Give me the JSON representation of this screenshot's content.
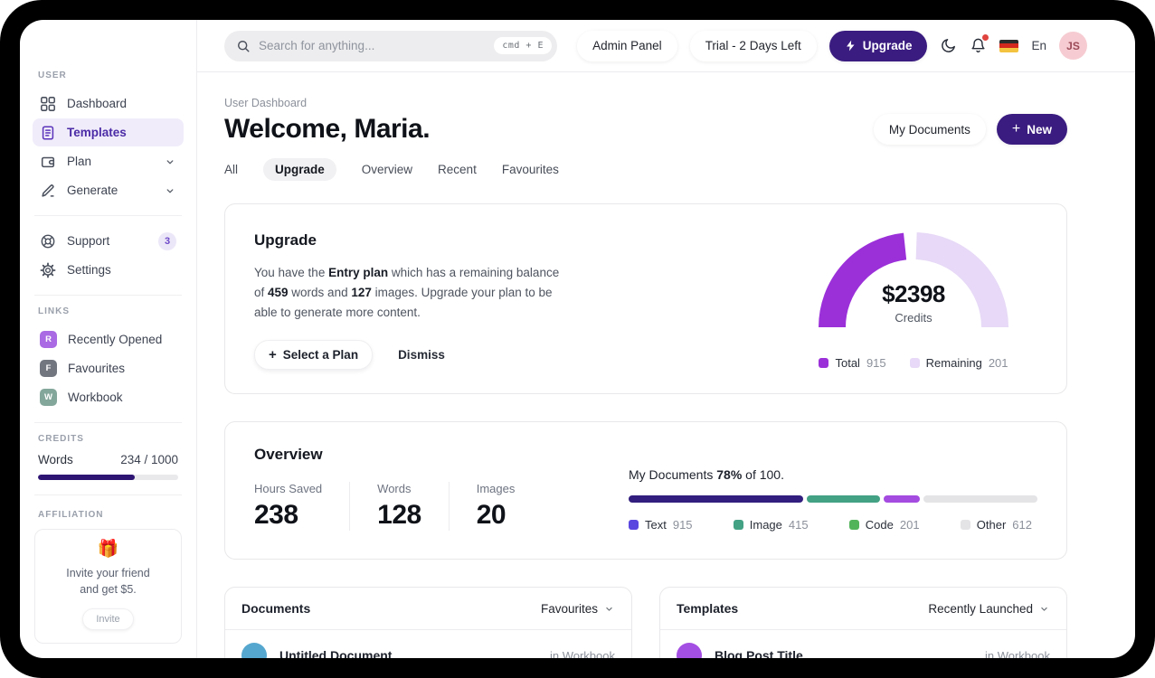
{
  "sidebar": {
    "section_user": "USER",
    "nav": [
      {
        "label": "Dashboard"
      },
      {
        "label": "Templates"
      },
      {
        "label": "Plan"
      },
      {
        "label": "Generate"
      }
    ],
    "support": {
      "label": "Support",
      "badge": "3"
    },
    "settings": {
      "label": "Settings"
    },
    "section_links": "LINKS",
    "links": [
      {
        "initial": "R",
        "label": "Recently Opened",
        "color": "#a96ae3"
      },
      {
        "initial": "F",
        "label": "Favourites",
        "color": "#72767f"
      },
      {
        "initial": "W",
        "label": "Workbook",
        "color": "#84a79b"
      }
    ],
    "section_credits": "CREDITS",
    "credits": {
      "label": "Words",
      "value": "234 / 1000",
      "percent": 69,
      "bar_color": "#2d1473"
    },
    "section_affiliation": "AFFILIATION",
    "affiliation": {
      "emoji": "🎁",
      "line1": "Invite your friend",
      "line2": "and get $5.",
      "button_label": "Invite"
    }
  },
  "topbar": {
    "search_placeholder": "Search for anything...",
    "shortcut": "cmd + E",
    "admin_panel_label": "Admin Panel",
    "trial_label": "Trial - 2 Days Left",
    "upgrade_label": "Upgrade",
    "language": "En",
    "avatar_initials": "JS",
    "flag_colors": {
      "top": "#2b2b2b",
      "mid": "#d3281e",
      "bottom": "#f4c33f"
    }
  },
  "header": {
    "breadcrumb": "User Dashboard",
    "title": "Welcome, Maria.",
    "tabs": [
      {
        "label": "All"
      },
      {
        "label": "Upgrade"
      },
      {
        "label": "Overview"
      },
      {
        "label": "Recent"
      },
      {
        "label": "Favourites"
      }
    ],
    "active_tab": "Upgrade",
    "my_documents_label": "My Documents",
    "new_label": "New"
  },
  "upgrade_card": {
    "title": "Upgrade",
    "body": {
      "t1": "You have the ",
      "b1": "Entry plan",
      "t2": " which has a remaining balance of ",
      "b2": "459",
      "t3": " words and ",
      "b3": "127",
      "t4": " images. Upgrade your plan to be able to generate more content."
    },
    "select_plan_label": "Select a Plan",
    "dismiss_label": "Dismiss",
    "gauge": {
      "type": "half-donut",
      "center_value": "$2398",
      "center_label": "Credits",
      "segments": [
        {
          "label": "Total",
          "value": "915",
          "color": "#9b30d9"
        },
        {
          "label": "Remaining",
          "value": "201",
          "color": "#e7d9f7"
        }
      ]
    }
  },
  "overview_card": {
    "title": "Overview",
    "stats": [
      {
        "label": "Hours Saved",
        "value": "238"
      },
      {
        "label": "Words",
        "value": "128"
      },
      {
        "label": "Images",
        "value": "20"
      }
    ],
    "progress": {
      "prefix": "My Documents ",
      "percent": "78%",
      "suffix": " of 100.",
      "segments": [
        {
          "label": "Text",
          "value": "915",
          "pct": 43,
          "bar_color": "#321e7e",
          "legend_color": "#5a47e0"
        },
        {
          "label": "Image",
          "value": "415",
          "pct": 18,
          "bar_color": "#43a184",
          "legend_color": "#43a184"
        },
        {
          "label": "Code",
          "value": "201",
          "pct": 9,
          "bar_color": "#a44be0",
          "legend_color": "#52b45a"
        },
        {
          "label": "Other",
          "value": "612",
          "pct": 28,
          "bar_color": "#e4e4e7",
          "legend_color": "#e4e4e7"
        }
      ]
    }
  },
  "documents_card": {
    "title": "Documents",
    "filter_label": "Favourites",
    "rows": [
      {
        "title": "Untitled Document",
        "location": "in Workbook",
        "avatar_color": "#56a7cf"
      }
    ]
  },
  "templates_card": {
    "title": "Templates",
    "filter_label": "Recently Launched",
    "rows": [
      {
        "title": "Blog Post Title",
        "location": "in Workbook",
        "avatar_color": "#a44fe3"
      }
    ]
  }
}
